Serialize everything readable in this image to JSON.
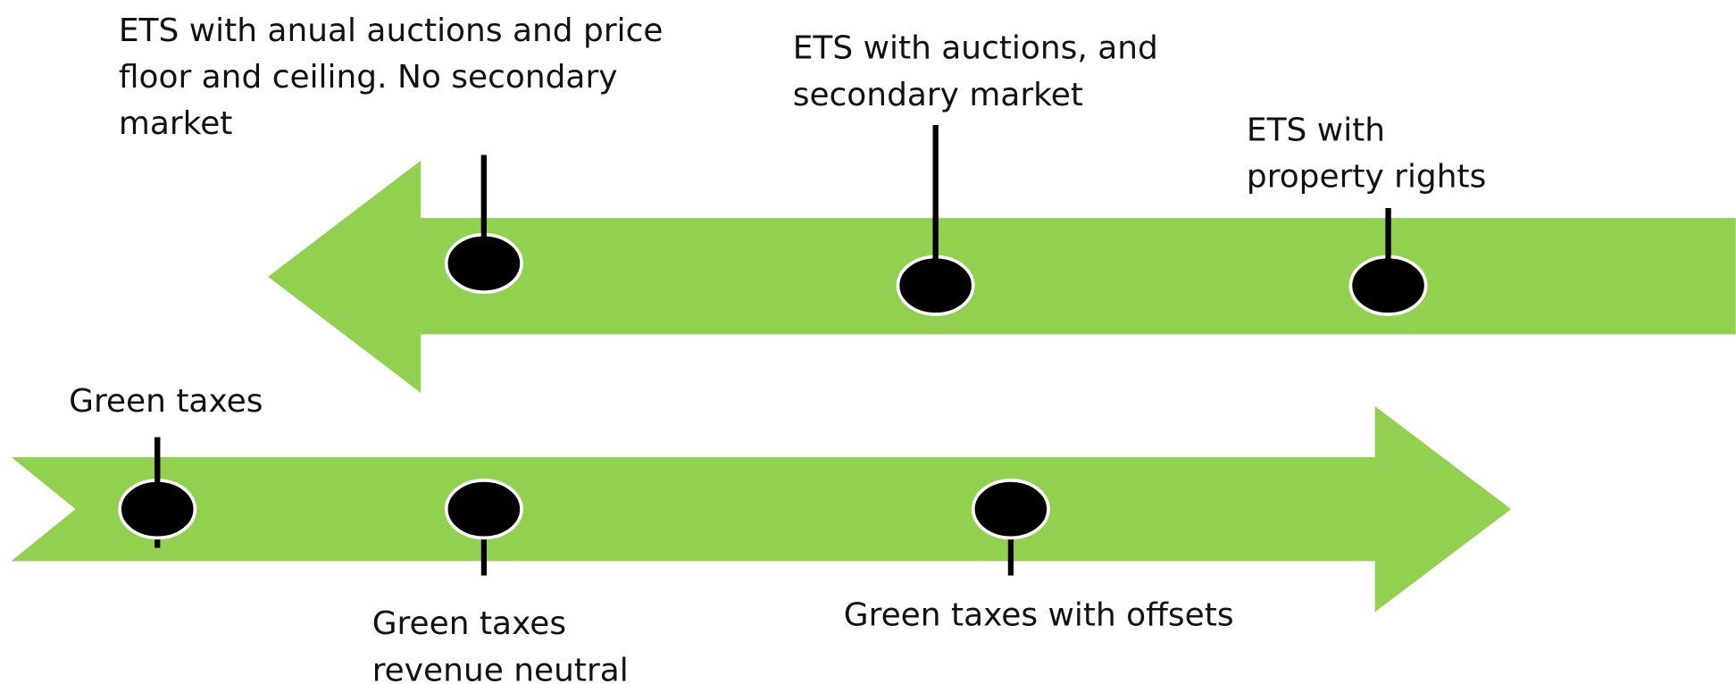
{
  "milestones": [
    {
      "lines": [
        "ETS with anual auctions and price",
        "floor and ceiling. No secondary",
        "market"
      ]
    },
    {
      "lines": [
        "ETS with auctions, and",
        "secondary market"
      ]
    },
    {
      "lines": [
        "ETS with",
        "property rights"
      ]
    },
    {
      "lines": [
        "Green taxes"
      ]
    },
    {
      "lines": [
        "Green taxes",
        "revenue neutral"
      ]
    },
    {
      "lines": [
        "Green taxes with offsets"
      ]
    }
  ]
}
